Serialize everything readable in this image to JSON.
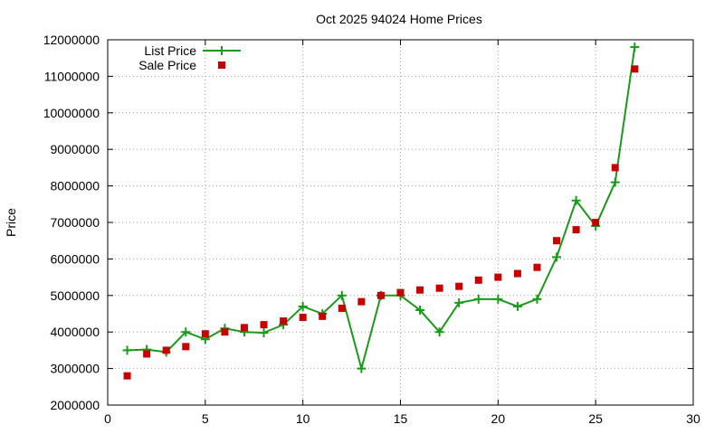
{
  "chart_data": {
    "type": "line",
    "title": "Oct 2025 94024 Home Prices",
    "xlabel": "",
    "ylabel": "Price",
    "xlim": [
      0,
      30
    ],
    "ylim": [
      2000000,
      12000000
    ],
    "x_ticks": [
      0,
      5,
      10,
      15,
      20,
      25,
      30
    ],
    "y_ticks": [
      2000000,
      3000000,
      4000000,
      5000000,
      6000000,
      7000000,
      8000000,
      9000000,
      10000000,
      11000000,
      12000000
    ],
    "grid": true,
    "legend_position": "top-left",
    "series": [
      {
        "name": "List Price",
        "style": "linespoints",
        "marker": "plus",
        "color": "#1a9a1a",
        "x": [
          1,
          2,
          3,
          4,
          5,
          6,
          7,
          8,
          9,
          10,
          11,
          12,
          13,
          14,
          15,
          16,
          17,
          18,
          19,
          20,
          21,
          22,
          23,
          24,
          25,
          26,
          27
        ],
        "values": [
          3500000,
          3520000,
          3450000,
          4000000,
          3800000,
          4100000,
          4000000,
          3980000,
          4200000,
          4700000,
          4500000,
          5000000,
          3000000,
          5000000,
          5000000,
          4600000,
          4000000,
          4800000,
          4900000,
          4900000,
          4700000,
          4900000,
          6050000,
          7600000,
          6900000,
          8100000,
          11800000
        ]
      },
      {
        "name": "Sale Price",
        "style": "points",
        "marker": "square",
        "color": "#c80000",
        "x": [
          1,
          2,
          3,
          4,
          5,
          6,
          7,
          8,
          9,
          10,
          11,
          12,
          13,
          14,
          15,
          16,
          17,
          18,
          19,
          20,
          21,
          22,
          23,
          24,
          25,
          26,
          27
        ],
        "values": [
          2800000,
          3400000,
          3500000,
          3600000,
          3950000,
          4000000,
          4120000,
          4200000,
          4300000,
          4400000,
          4430000,
          4650000,
          4830000,
          5000000,
          5080000,
          5150000,
          5200000,
          5250000,
          5420000,
          5500000,
          5600000,
          5770000,
          6500000,
          6800000,
          7000000,
          8500000,
          11200000
        ]
      }
    ]
  }
}
